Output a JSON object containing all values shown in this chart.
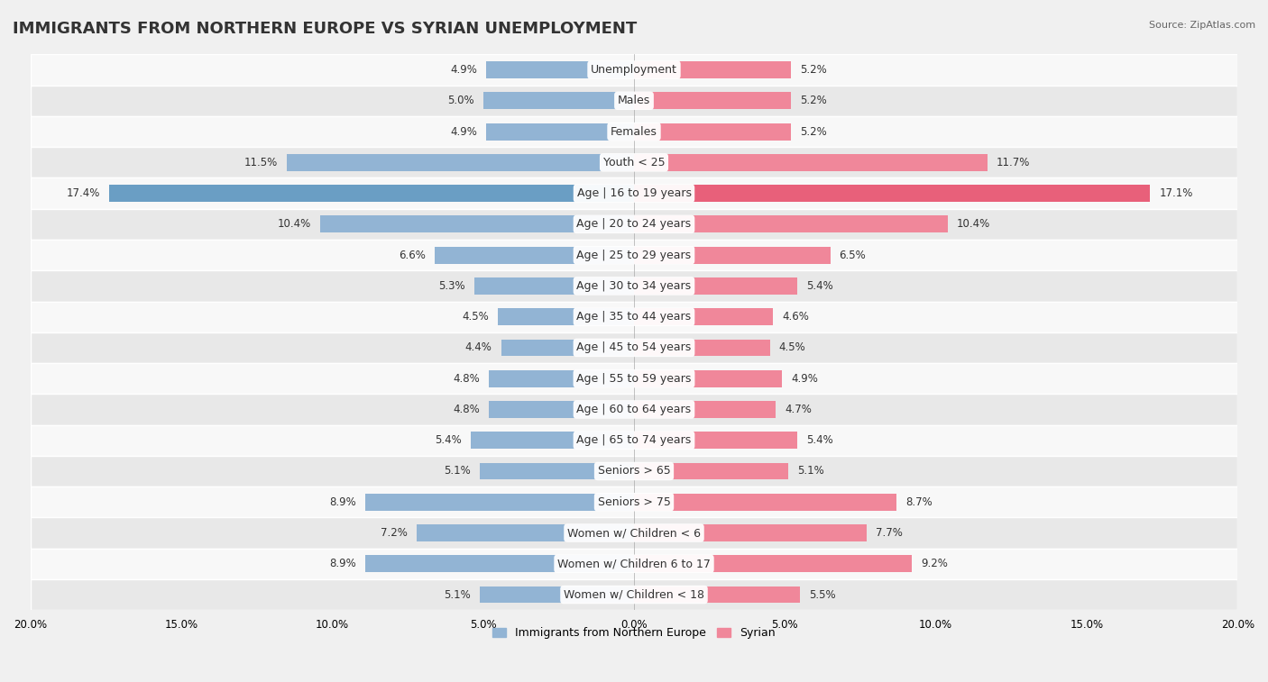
{
  "title": "IMMIGRANTS FROM NORTHERN EUROPE VS SYRIAN UNEMPLOYMENT",
  "source": "Source: ZipAtlas.com",
  "categories": [
    "Unemployment",
    "Males",
    "Females",
    "Youth < 25",
    "Age | 16 to 19 years",
    "Age | 20 to 24 years",
    "Age | 25 to 29 years",
    "Age | 30 to 34 years",
    "Age | 35 to 44 years",
    "Age | 45 to 54 years",
    "Age | 55 to 59 years",
    "Age | 60 to 64 years",
    "Age | 65 to 74 years",
    "Seniors > 65",
    "Seniors > 75",
    "Women w/ Children < 6",
    "Women w/ Children 6 to 17",
    "Women w/ Children < 18"
  ],
  "left_values": [
    4.9,
    5.0,
    4.9,
    11.5,
    17.4,
    10.4,
    6.6,
    5.3,
    4.5,
    4.4,
    4.8,
    4.8,
    5.4,
    5.1,
    8.9,
    7.2,
    8.9,
    5.1
  ],
  "right_values": [
    5.2,
    5.2,
    5.2,
    11.7,
    17.1,
    10.4,
    6.5,
    5.4,
    4.6,
    4.5,
    4.9,
    4.7,
    5.4,
    5.1,
    8.7,
    7.7,
    9.2,
    5.5
  ],
  "left_color": "#92b4d4",
  "right_color": "#f0879a",
  "highlight_left_color": "#6a9ec4",
  "highlight_right_color": "#e8607a",
  "axis_max": 20.0,
  "bar_height": 0.55,
  "bg_color": "#f0f0f0",
  "row_bg_even": "#f8f8f8",
  "row_bg_odd": "#e8e8e8",
  "legend_left_label": "Immigrants from Northern Europe",
  "legend_right_label": "Syrian",
  "title_fontsize": 13,
  "label_fontsize": 9,
  "value_fontsize": 8.5,
  "highlight_row": 4
}
